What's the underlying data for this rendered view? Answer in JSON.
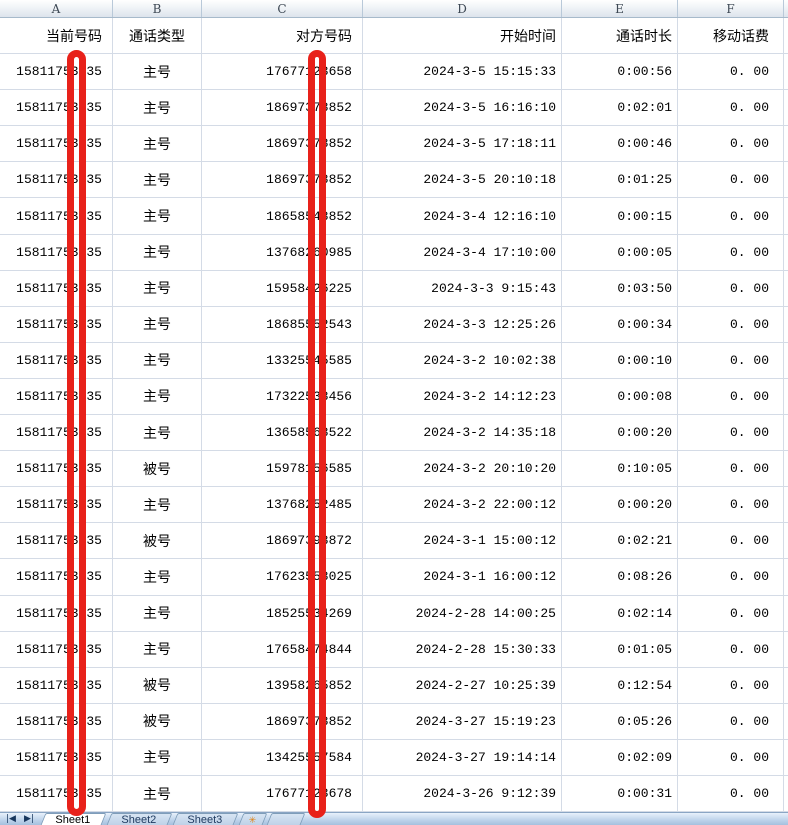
{
  "columns": {
    "letters": [
      "A",
      "B",
      "C",
      "D",
      "E",
      "F"
    ]
  },
  "header_row": {
    "current": "当前号码",
    "type": "通话类型",
    "other": "对方号码",
    "start": "开始时间",
    "duration": "通话时长",
    "fee": "移动话费"
  },
  "rows": [
    {
      "current": "15811753635",
      "type": "主号",
      "other": "17677123658",
      "start": "2024-3-5 15:15:33",
      "duration": "0:00:56",
      "fee": "0. 00"
    },
    {
      "current": "15811753635",
      "type": "主号",
      "other": "18697378852",
      "start": "2024-3-5 16:16:10",
      "duration": "0:02:01",
      "fee": "0. 00"
    },
    {
      "current": "15811753635",
      "type": "主号",
      "other": "18697378852",
      "start": "2024-3-5 17:18:11",
      "duration": "0:00:46",
      "fee": "0. 00"
    },
    {
      "current": "15811753635",
      "type": "主号",
      "other": "18697378852",
      "start": "2024-3-5 20:10:18",
      "duration": "0:01:25",
      "fee": "0. 00"
    },
    {
      "current": "15811753635",
      "type": "主号",
      "other": "18658548852",
      "start": "2024-3-4 12:16:10",
      "duration": "0:00:15",
      "fee": "0. 00"
    },
    {
      "current": "15811753635",
      "type": "主号",
      "other": "13768260985",
      "start": "2024-3-4 17:10:00",
      "duration": "0:00:05",
      "fee": "0. 00"
    },
    {
      "current": "15811753635",
      "type": "主号",
      "other": "15958426225",
      "start": "2024-3-3 9:15:43",
      "duration": "0:03:50",
      "fee": "0. 00"
    },
    {
      "current": "15811753635",
      "type": "主号",
      "other": "18685552543",
      "start": "2024-3-3 12:25:26",
      "duration": "0:00:34",
      "fee": "0. 00"
    },
    {
      "current": "15811753635",
      "type": "主号",
      "other": "13325545585",
      "start": "2024-3-2 10:02:38",
      "duration": "0:00:10",
      "fee": "0. 00"
    },
    {
      "current": "15811753635",
      "type": "主号",
      "other": "17322538456",
      "start": "2024-3-2 14:12:23",
      "duration": "0:00:08",
      "fee": "0. 00"
    },
    {
      "current": "15811753635",
      "type": "主号",
      "other": "13658568522",
      "start": "2024-3-2 14:35:18",
      "duration": "0:00:20",
      "fee": "0. 00"
    },
    {
      "current": "15811753635",
      "type": "被号",
      "other": "15978156585",
      "start": "2024-3-2 20:10:20",
      "duration": "0:10:05",
      "fee": "0. 00"
    },
    {
      "current": "15811753635",
      "type": "主号",
      "other": "13768252485",
      "start": "2024-3-2 22:00:12",
      "duration": "0:00:20",
      "fee": "0. 00"
    },
    {
      "current": "15811753635",
      "type": "被号",
      "other": "18697398872",
      "start": "2024-3-1 15:00:12",
      "duration": "0:02:21",
      "fee": "0. 00"
    },
    {
      "current": "15811753635",
      "type": "主号",
      "other": "17623558025",
      "start": "2024-3-1 16:00:12",
      "duration": "0:08:26",
      "fee": "0. 00"
    },
    {
      "current": "15811753635",
      "type": "主号",
      "other": "18525534269",
      "start": "2024-2-28 14:00:25",
      "duration": "0:02:14",
      "fee": "0. 00"
    },
    {
      "current": "15811753635",
      "type": "主号",
      "other": "17658474844",
      "start": "2024-2-28 15:30:33",
      "duration": "0:01:05",
      "fee": "0. 00"
    },
    {
      "current": "15811753635",
      "type": "被号",
      "other": "13958265852",
      "start": "2024-2-27 10:25:39",
      "duration": "0:12:54",
      "fee": "0. 00"
    },
    {
      "current": "15811753635",
      "type": "被号",
      "other": "18697378852",
      "start": "2024-3-27 15:19:23",
      "duration": "0:05:26",
      "fee": "0. 00"
    },
    {
      "current": "15811753635",
      "type": "主号",
      "other": "13425557584",
      "start": "2024-3-27 19:14:14",
      "duration": "0:02:09",
      "fee": "0. 00"
    },
    {
      "current": "15811753635",
      "type": "主号",
      "other": "17677123678",
      "start": "2024-3-26 9:12:39",
      "duration": "0:00:31",
      "fee": "0. 00"
    }
  ],
  "tabbar": {
    "nav_first": "|◀",
    "nav_last": "▶|",
    "sheets": [
      {
        "label": "Sheet1",
        "active": true
      },
      {
        "label": "Sheet2",
        "active": false
      },
      {
        "label": "Sheet3",
        "active": false
      }
    ],
    "insert_icon": "✳"
  },
  "annotation": {
    "color": "#e8211a",
    "description": "two tall red rounded-rectangle outlines masking one digit of column A and column C phone numbers"
  }
}
